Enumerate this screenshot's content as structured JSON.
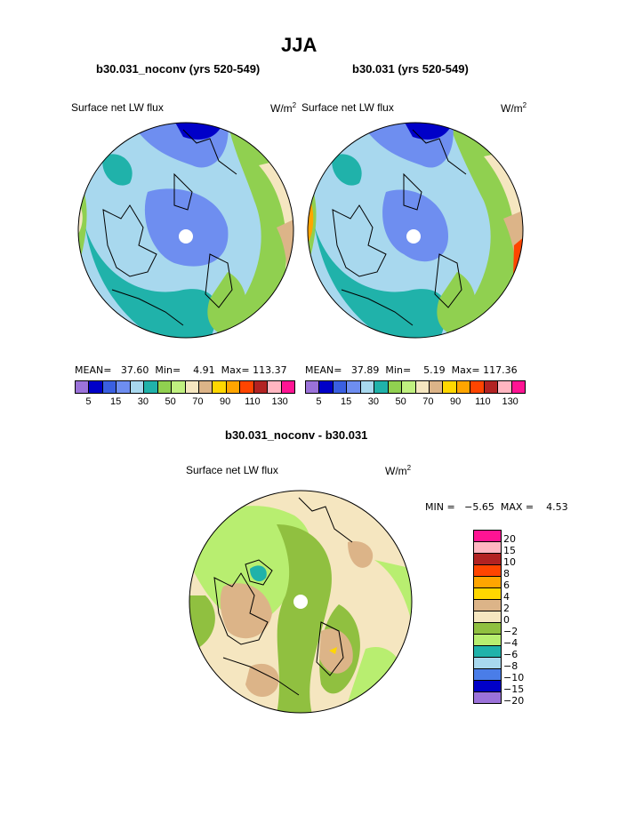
{
  "title": "JJA",
  "panels": [
    {
      "subtitle": "b30.031_noconv (yrs 520-549)",
      "left_label": "Surface net LW flux",
      "units": "W/m",
      "units_sup": "2",
      "mean_label": "MEAN=",
      "mean": "37.60",
      "min_label": "Min=",
      "min": "4.91",
      "max_label": "Max=",
      "max": "113.37"
    },
    {
      "subtitle": "b30.031 (yrs 520-549)",
      "left_label": "Surface net LW flux",
      "units": "W/m",
      "units_sup": "2",
      "mean_label": "MEAN=",
      "mean": "37.89",
      "min_label": "Min=",
      "min": "5.19",
      "max_label": "Max=",
      "max": "117.36"
    }
  ],
  "colorbar": {
    "colors": [
      "#9b72d9",
      "#0000c8",
      "#3a5fe0",
      "#6e8ef0",
      "#a8d8ee",
      "#20b2aa",
      "#90d050",
      "#c0f080",
      "#f5e6c0",
      "#dcb488",
      "#ffd700",
      "#ffa500",
      "#ff4500",
      "#b22222",
      "#ffb6c1",
      "#ff1493"
    ],
    "ticks": [
      "5",
      "15",
      "30",
      "50",
      "70",
      "90",
      "110",
      "130"
    ]
  },
  "difference": {
    "subtitle": "b30.031_noconv - b30.031",
    "left_label": "Surface net LW flux",
    "units": "W/m",
    "units_sup": "2",
    "minmax_text": "MIN =   −5.65  MAX =    4.53",
    "colors": [
      "#ff1493",
      "#ffb6c1",
      "#b22222",
      "#ff4500",
      "#ffa500",
      "#ffd700",
      "#dcb488",
      "#f5e6c0",
      "#90c040",
      "#b8ee70",
      "#20b2aa",
      "#a8d8ee",
      "#4a7de8",
      "#0000c8",
      "#9b72d9"
    ],
    "ticks": [
      "20",
      "15",
      "10",
      "8",
      "6",
      "4",
      "2",
      "0",
      "−2",
      "−4",
      "−6",
      "−8",
      "−10",
      "−15",
      "−20"
    ]
  }
}
